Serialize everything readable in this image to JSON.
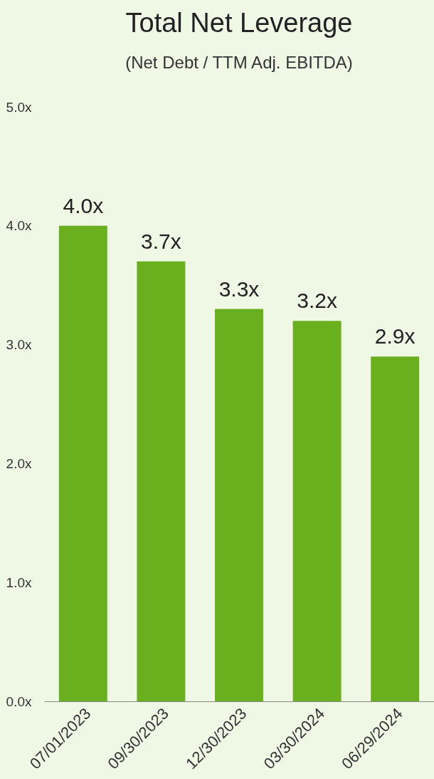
{
  "chart_data": {
    "type": "bar",
    "title": "Total Net Leverage",
    "subtitle": "(Net Debt / TTM Adj. EBITDA)",
    "categories": [
      "07/01/2023",
      "09/30/2023",
      "12/30/2023",
      "03/30/2024",
      "06/29/2024"
    ],
    "values": [
      4.0,
      3.7,
      3.3,
      3.2,
      2.9
    ],
    "value_labels": [
      "4.0x",
      "3.7x",
      "3.3x",
      "3.2x",
      "2.9x"
    ],
    "color": "#6aaf1e",
    "ylim": [
      0,
      5
    ],
    "yticks": [
      {
        "value": 0,
        "label": "0.0x"
      },
      {
        "value": 1,
        "label": "1.0x"
      },
      {
        "value": 2,
        "label": "2.0x"
      },
      {
        "value": 3,
        "label": "3.0x"
      },
      {
        "value": 4,
        "label": "4.0x"
      },
      {
        "value": 5,
        "label": "5.0x"
      }
    ],
    "grid": false
  }
}
